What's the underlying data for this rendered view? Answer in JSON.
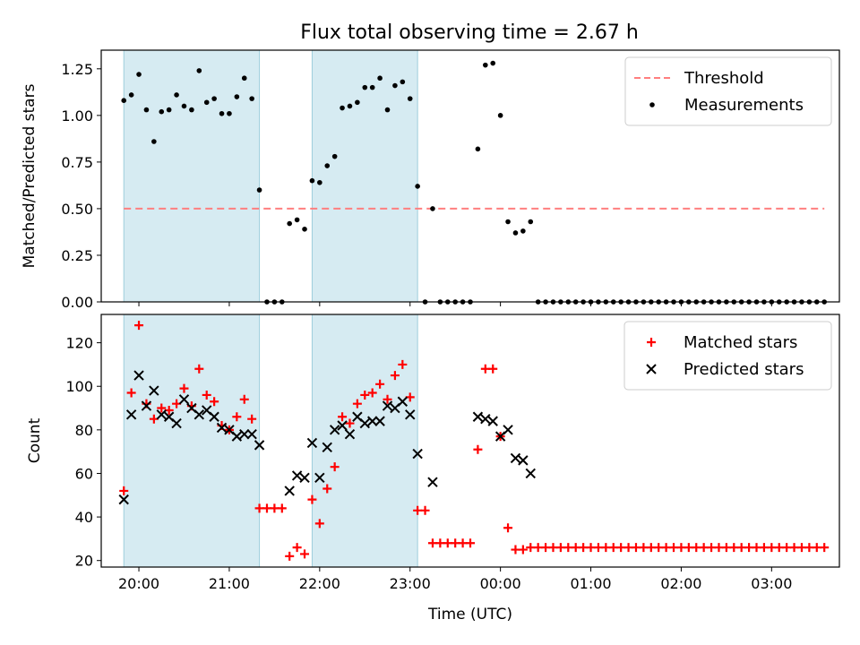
{
  "figure": {
    "title": "Flux total observing time = 2.67 h"
  },
  "chart_data": [
    {
      "type": "scatter",
      "panel": "top",
      "title": "Flux total observing time = 2.67 h",
      "xlabel": "",
      "ylabel": "Matched/Predicted stars",
      "xlim": [
        "19:35",
        "03:45"
      ],
      "ylim": [
        0,
        1.35
      ],
      "yticks": [
        "0.00",
        "0.25",
        "0.50",
        "0.75",
        "1.00",
        "1.25"
      ],
      "xtick_labels_shown": false,
      "legend_position": "upper right",
      "shaded_intervals": [
        [
          "19:50",
          "21:20"
        ],
        [
          "21:55",
          "23:05"
        ]
      ],
      "threshold": {
        "name": "Threshold",
        "value": 0.5,
        "x_range": [
          "19:50",
          "03:35"
        ],
        "color": "#ff7f7f",
        "style": "dashed"
      },
      "series": [
        {
          "name": "Measurements",
          "marker": "dot",
          "color": "#000000",
          "x": [
            "19:50",
            "19:55",
            "20:00",
            "20:05",
            "20:10",
            "20:15",
            "20:20",
            "20:25",
            "20:30",
            "20:35",
            "20:40",
            "20:45",
            "20:50",
            "20:55",
            "21:00",
            "21:05",
            "21:10",
            "21:15",
            "21:20",
            "21:25",
            "21:30",
            "21:35",
            "21:40",
            "21:45",
            "21:50",
            "21:55",
            "22:00",
            "22:05",
            "22:10",
            "22:15",
            "22:20",
            "22:25",
            "22:30",
            "22:35",
            "22:40",
            "22:45",
            "22:50",
            "22:55",
            "23:00",
            "23:05",
            "23:10",
            "23:15",
            "23:20",
            "23:25",
            "23:30",
            "23:35",
            "23:40",
            "23:45",
            "23:50",
            "23:55",
            "00:00",
            "00:05",
            "00:10",
            "00:15",
            "00:20",
            "00:25",
            "00:30",
            "00:35",
            "00:40",
            "00:45",
            "00:50",
            "00:55",
            "01:00",
            "01:05",
            "01:10",
            "01:15",
            "01:20",
            "01:25",
            "01:30",
            "01:35",
            "01:40",
            "01:45",
            "01:50",
            "01:55",
            "02:00",
            "02:05",
            "02:10",
            "02:15",
            "02:20",
            "02:25",
            "02:30",
            "02:35",
            "02:40",
            "02:45",
            "02:50",
            "02:55",
            "03:00",
            "03:05",
            "03:10",
            "03:15",
            "03:20",
            "03:25",
            "03:30",
            "03:35"
          ],
          "y": [
            1.08,
            1.11,
            1.22,
            1.03,
            0.86,
            1.02,
            1.03,
            1.11,
            1.05,
            1.03,
            1.24,
            1.07,
            1.09,
            1.01,
            1.01,
            1.1,
            1.2,
            1.09,
            0.6,
            0,
            0,
            0,
            0.42,
            0.44,
            0.39,
            0.65,
            0.64,
            0.73,
            0.78,
            1.04,
            1.05,
            1.07,
            1.15,
            1.15,
            1.2,
            1.03,
            1.16,
            1.18,
            1.09,
            0.62,
            0,
            0.5,
            0,
            0,
            0,
            0,
            0,
            0.82,
            1.27,
            1.28,
            1.0,
            0.43,
            0.37,
            0.38,
            0.43,
            0,
            0,
            0,
            0,
            0,
            0,
            0,
            0,
            0,
            0,
            0,
            0,
            0,
            0,
            0,
            0,
            0,
            0,
            0,
            0,
            0,
            0,
            0,
            0,
            0,
            0,
            0,
            0,
            0,
            0,
            0,
            0,
            0,
            0,
            0,
            0,
            0,
            0,
            0
          ]
        }
      ]
    },
    {
      "type": "scatter",
      "panel": "bottom",
      "xlabel": "Time (UTC)",
      "ylabel": "Count",
      "xlim": [
        "19:35",
        "03:45"
      ],
      "ylim": [
        17,
        133
      ],
      "yticks": [
        "20",
        "40",
        "60",
        "80",
        "100",
        "120"
      ],
      "xticks": [
        "20:00",
        "21:00",
        "22:00",
        "23:00",
        "00:00",
        "01:00",
        "02:00",
        "03:00"
      ],
      "legend_position": "upper right",
      "shaded_intervals": [
        [
          "19:50",
          "21:20"
        ],
        [
          "21:55",
          "23:05"
        ]
      ],
      "series": [
        {
          "name": "Matched stars",
          "marker": "plus",
          "color": "#ff0000",
          "x": [
            "19:50",
            "19:55",
            "20:00",
            "20:05",
            "20:10",
            "20:15",
            "20:20",
            "20:25",
            "20:30",
            "20:35",
            "20:40",
            "20:45",
            "20:50",
            "20:55",
            "21:00",
            "21:05",
            "21:10",
            "21:15",
            "21:20",
            "21:25",
            "21:30",
            "21:35",
            "21:40",
            "21:45",
            "21:50",
            "21:55",
            "22:00",
            "22:05",
            "22:10",
            "22:15",
            "22:20",
            "22:25",
            "22:30",
            "22:35",
            "22:40",
            "22:45",
            "22:50",
            "22:55",
            "23:00",
            "23:05",
            "23:10",
            "23:15",
            "23:20",
            "23:25",
            "23:30",
            "23:35",
            "23:40",
            "23:45",
            "23:50",
            "23:55",
            "00:00",
            "00:05",
            "00:10",
            "00:15",
            "00:20",
            "00:25",
            "00:30",
            "00:35",
            "00:40",
            "00:45",
            "00:50",
            "00:55",
            "01:00",
            "01:05",
            "01:10",
            "01:15",
            "01:20",
            "01:25",
            "01:30",
            "01:35",
            "01:40",
            "01:45",
            "01:50",
            "01:55",
            "02:00",
            "02:05",
            "02:10",
            "02:15",
            "02:20",
            "02:25",
            "02:30",
            "02:35",
            "02:40",
            "02:45",
            "02:50",
            "02:55",
            "03:00",
            "03:05",
            "03:10",
            "03:15",
            "03:20",
            "03:25",
            "03:30",
            "03:35"
          ],
          "y": [
            52,
            97,
            128,
            92,
            85,
            90,
            89,
            92,
            99,
            91,
            108,
            96,
            93,
            82,
            80,
            86,
            94,
            85,
            44,
            44,
            44,
            44,
            22,
            26,
            23,
            48,
            37,
            53,
            63,
            86,
            83,
            92,
            96,
            97,
            101,
            94,
            105,
            110,
            95,
            43,
            43,
            28,
            28,
            28,
            28,
            28,
            28,
            71,
            108,
            108,
            77,
            35,
            25,
            25,
            26,
            26,
            26,
            26,
            26,
            26,
            26,
            26,
            26,
            26,
            26,
            26,
            26,
            26,
            26,
            26,
            26,
            26,
            26,
            26,
            26,
            26,
            26,
            26,
            26,
            26,
            26,
            26,
            26,
            26,
            26,
            26,
            26,
            26,
            26,
            26,
            26,
            26,
            26,
            26
          ]
        },
        {
          "name": "Predicted stars",
          "marker": "x",
          "color": "#000000",
          "x": [
            "19:50",
            "19:55",
            "20:00",
            "20:05",
            "20:10",
            "20:15",
            "20:20",
            "20:25",
            "20:30",
            "20:35",
            "20:40",
            "20:45",
            "20:50",
            "20:55",
            "21:00",
            "21:05",
            "21:10",
            "21:15",
            "21:20",
            "21:40",
            "21:45",
            "21:50",
            "21:55",
            "22:00",
            "22:05",
            "22:10",
            "22:15",
            "22:20",
            "22:25",
            "22:30",
            "22:35",
            "22:40",
            "22:45",
            "22:50",
            "22:55",
            "23:00",
            "23:05",
            "23:15",
            "23:45",
            "23:50",
            "23:55",
            "00:00",
            "00:05",
            "00:10",
            "00:15",
            "00:20"
          ],
          "y": [
            48,
            87,
            105,
            91,
            98,
            87,
            86,
            83,
            94,
            90,
            87,
            89,
            86,
            81,
            80,
            77,
            78,
            78,
            73,
            52,
            59,
            58,
            74,
            58,
            72,
            80,
            82,
            78,
            86,
            83,
            84,
            84,
            91,
            90,
            93,
            87,
            69,
            56,
            86,
            85,
            84,
            77,
            80,
            67,
            66,
            60
          ]
        }
      ]
    }
  ]
}
